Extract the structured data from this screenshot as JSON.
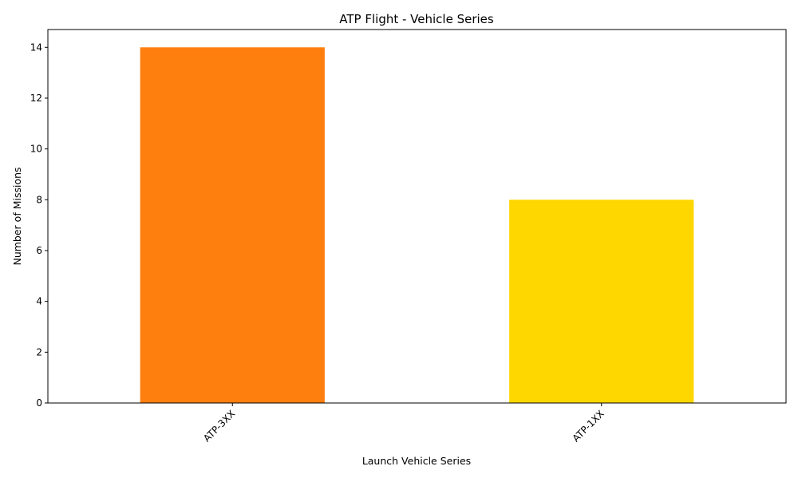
{
  "chart_data": {
    "type": "bar",
    "title": "ATP Flight - Vehicle Series",
    "xlabel": "Launch Vehicle Series",
    "ylabel": "Number of Missions",
    "categories": [
      "ATP-3XX",
      "ATP-1XX"
    ],
    "values": [
      14,
      8
    ],
    "colors": [
      "#ff7f0e",
      "#ffd700"
    ],
    "ylim": [
      0,
      14.7
    ],
    "yticks": [
      0,
      2,
      4,
      6,
      8,
      10,
      12,
      14
    ],
    "grid": false,
    "legend": "none",
    "xtick_rotation": -45
  }
}
